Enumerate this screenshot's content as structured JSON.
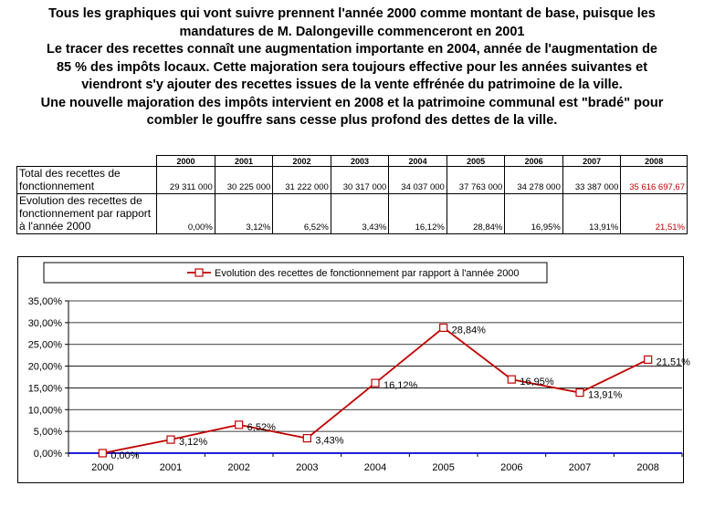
{
  "heading": {
    "line1": "Tous les graphiques qui vont suivre prennent l'année 2000 comme montant de base, puisque les",
    "line2": "mandatures de M. Dalongeville commenceront en 2001",
    "line3": "Le tracer des recettes connaît une augmentation importante en 2004, année de l'augmentation de",
    "line4": "85 % des impôts locaux. Cette majoration sera toujours effective pour les années suivantes et",
    "line5": "viendront s'y ajouter des recettes issues de la vente effrénée du patrimoine de la ville.",
    "line6": "Une nouvelle majoration des impôts intervient en 2008 et la patrimoine communal est \"bradé\" pour",
    "line7": "combler le gouffre sans cesse plus profond des dettes de la ville."
  },
  "table": {
    "years": [
      "2000",
      "2001",
      "2002",
      "2003",
      "2004",
      "2005",
      "2006",
      "2007",
      "2008"
    ],
    "row1_label": "Total des recettes de fonctionnement",
    "row1_values": [
      "29 311 000",
      "30 225 000",
      "31 222 000",
      "30 317 000",
      "34 037 000",
      "37 763 000",
      "34 278 000",
      "33 387 000",
      "35 616 697,67"
    ],
    "row2_label": "Evolution des recettes de fonctionnement par rapport à l'année 2000",
    "row2_values": [
      "0,00%",
      "3,12%",
      "6,52%",
      "3,43%",
      "16,12%",
      "28,84%",
      "16,95%",
      "13,91%",
      "21,51%"
    ],
    "highlight_color": "#c00000"
  },
  "chart_data": {
    "type": "line",
    "title": "",
    "xlabel": "",
    "ylabel": "",
    "categories": [
      "2000",
      "2001",
      "2002",
      "2003",
      "2004",
      "2005",
      "2006",
      "2007",
      "2008"
    ],
    "series": [
      {
        "name": "Evolution des recettes de fonctionnement par rapport à l'année 2000",
        "values": [
          0.0,
          3.12,
          6.52,
          3.43,
          16.12,
          28.84,
          16.95,
          13.91,
          21.51
        ],
        "labels": [
          "0,00%",
          "3,12%",
          "6,52%",
          "3,43%",
          "16,12%",
          "28,84%",
          "16,95%",
          "13,91%",
          "21,51%"
        ],
        "color": "#c00000",
        "marker": "square-open"
      }
    ],
    "ylim": [
      0,
      35
    ],
    "yticks": [
      0,
      5,
      10,
      15,
      20,
      25,
      30,
      35
    ],
    "ytick_labels": [
      "0,00%",
      "5,00%",
      "10,00%",
      "15,00%",
      "20,00%",
      "25,00%",
      "30,00%",
      "35,00%"
    ],
    "grid": "horizontal",
    "legend_position": "top",
    "x_axis_color": "#0000cc"
  }
}
